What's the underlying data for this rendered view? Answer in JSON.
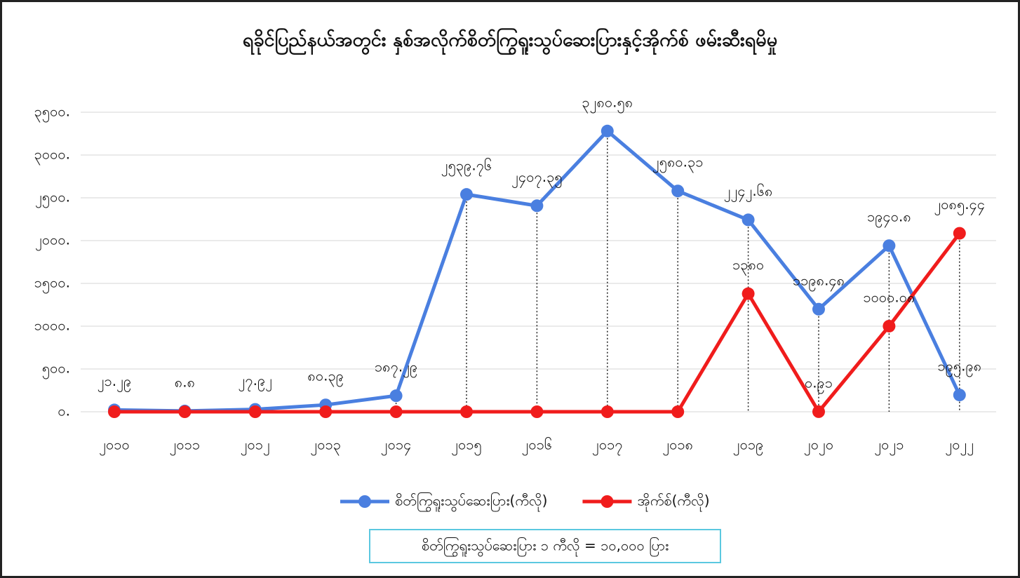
{
  "chart_data": {
    "type": "line",
    "title": "ရခိုင်ပြည်နယ်အတွင်း နှစ်အလိုက်စိတ်ကြွရူးသွပ်ဆေးပြားနှင့်အိုက်စ် ဖမ်းဆီးရမိမှု",
    "categories": [
      "၂၀၁၀",
      "၂၀၁၁",
      "၂၀၁၂",
      "၂၀၁၃",
      "၂၀၁၄",
      "၂၀၁၅",
      "၂၀၁၆",
      "၂၀၁၇",
      "၂၀၁၈",
      "၂၀၁၉",
      "၂၀၂၀",
      "၂၀၂၁",
      "၂၀၂၂"
    ],
    "series": [
      {
        "name": "စိတ်ကြွရူးသွပ်ဆေးပြား(ကီလို)",
        "color": "#4a7fe0",
        "values": [
          21.29,
          8.8,
          27.92,
          80.39,
          187.29,
          2539.76,
          2407.35,
          3280.58,
          2580.31,
          2242.68,
          1198.48,
          1940.8,
          195.98
        ],
        "value_labels": [
          "၂၁.၂၉",
          "၈.၈",
          "၂၇.၉၂",
          "၈၀.၃၉",
          "၁၈၇.၂၉",
          "၂၅၃၉.၇၆",
          "၂၄၀၇.၃၅",
          "၃၂၈၀.၅၈",
          "၂၅၈၀.၃၁",
          "၂၂၄၂.၆၈",
          "၁၁၉၈.၄၈",
          "၁၉၄၀.၈",
          "၁၉၅.၉၈"
        ]
      },
      {
        "name": "အိုက်စ်(ကီလို)",
        "color": "#f01c1c",
        "values": [
          0,
          0,
          0,
          0,
          0,
          0,
          0,
          0,
          0,
          1380,
          0.91,
          1000.08,
          2085.44
        ],
        "value_labels": [
          null,
          null,
          null,
          null,
          null,
          null,
          null,
          null,
          null,
          "၁၃၈၀",
          "၀.၉၁",
          "၁၀၀၀.၀၈",
          "၂၀၈၅.၄၄"
        ]
      }
    ],
    "ylim": [
      0,
      3500
    ],
    "yticks": [
      {
        "value": 0,
        "label": "၀."
      },
      {
        "value": 500,
        "label": "၅၀၀."
      },
      {
        "value": 1000,
        "label": "၁၀၀၀."
      },
      {
        "value": 1500,
        "label": "၁၅၀၀."
      },
      {
        "value": 2000,
        "label": "၂၀၀၀."
      },
      {
        "value": 2500,
        "label": "၂၅၀၀."
      },
      {
        "value": 3000,
        "label": "၃၀၀၀."
      },
      {
        "value": 3500,
        "label": "၃၅၀၀."
      }
    ],
    "grid": true,
    "note": "စိတ်ကြွရူးသွပ်ဆေးပြား ၁ ကီလို = ၁၀,၀၀၀ ပြား"
  }
}
